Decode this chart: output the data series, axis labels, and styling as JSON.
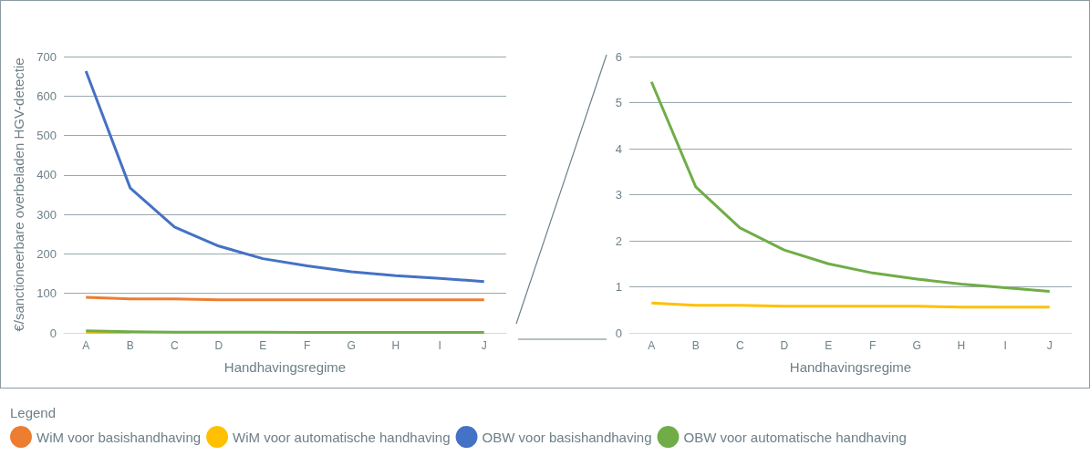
{
  "chart_data": [
    {
      "type": "line",
      "xlabel": "Handhavingsregime",
      "ylabel": "€/sanctioneerbare overbeladen HGV-detectie",
      "legend_title": "Legend",
      "categories": [
        "A",
        "B",
        "C",
        "D",
        "E",
        "F",
        "G",
        "H",
        "I",
        "J"
      ],
      "series": [
        {
          "name": "WiM voor basishandhaving",
          "color": "#ed7d31",
          "values": [
            90,
            86,
            86,
            84,
            84,
            84,
            84,
            84,
            84,
            84
          ]
        },
        {
          "name": "WiM voor automatische handhaving",
          "color": "#ffc000",
          "values": [
            1,
            1,
            null,
            null,
            null,
            null,
            null,
            null,
            null,
            null
          ]
        },
        {
          "name": "OBW voor basishandhaving",
          "color": "#4472c4",
          "values": [
            663,
            367,
            268,
            220,
            188,
            170,
            155,
            145,
            138,
            130
          ]
        },
        {
          "name": "OBW voor automatische handhaving",
          "color": "#70ad47",
          "values": [
            5,
            3,
            2,
            2,
            2,
            1,
            1,
            1,
            1,
            1
          ]
        }
      ],
      "ylim": [
        0,
        700
      ],
      "yticks": [
        0,
        100,
        200,
        300,
        400,
        500,
        600,
        700
      ],
      "grid": "y",
      "legend": "bottom",
      "marker": "none"
    },
    {
      "type": "line",
      "xlabel": "Handhavingsregime",
      "categories": [
        "A",
        "B",
        "C",
        "D",
        "E",
        "F",
        "G",
        "H",
        "I",
        "J"
      ],
      "series": [
        {
          "color": "#ffc000",
          "values": [
            0.65,
            0.6,
            0.6,
            0.58,
            0.58,
            0.58,
            0.58,
            0.56,
            0.56,
            0.56
          ]
        },
        {
          "color": "#70ad47",
          "values": [
            5.45,
            3.17,
            2.28,
            1.8,
            1.5,
            1.3,
            1.17,
            1.06,
            0.98,
            0.9
          ]
        }
      ],
      "ylim": [
        0,
        6
      ],
      "yticks": [
        0,
        1,
        2,
        3,
        4,
        5,
        6
      ],
      "grid": "y",
      "marker": "none"
    }
  ]
}
